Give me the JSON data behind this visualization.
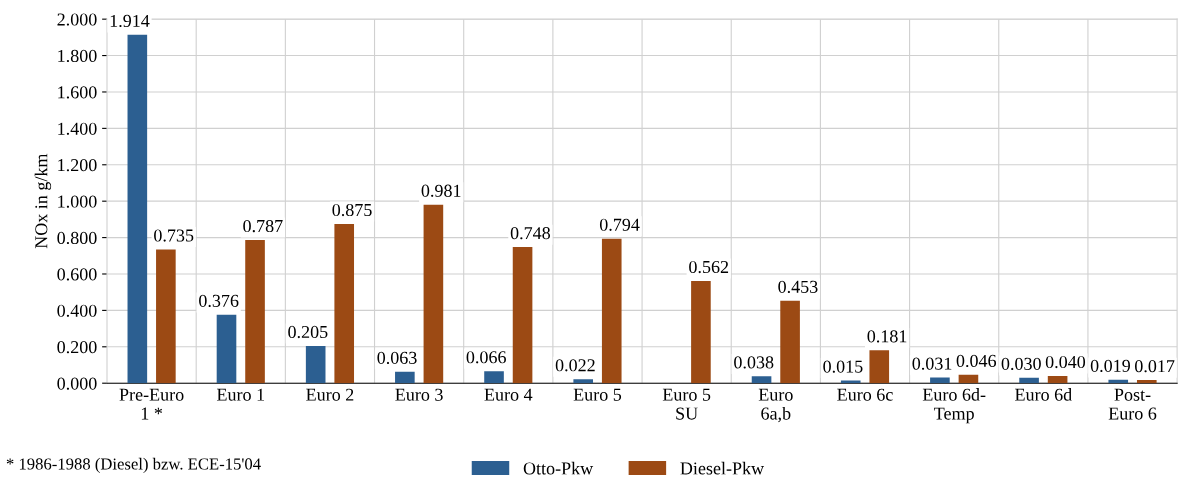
{
  "chart_data": {
    "type": "bar",
    "ylabel": "NOx in g/km",
    "categories": [
      "Pre-Euro\n1 *",
      "Euro 1",
      "Euro 2",
      "Euro 3",
      "Euro 4",
      "Euro 5",
      "Euro 5\nSU",
      "Euro\n6a,b",
      "Euro 6c",
      "Euro 6d-\nTemp",
      "Euro 6d",
      "Post-\nEuro 6"
    ],
    "series": [
      {
        "name": "Otto-Pkw",
        "color": "#2c5f91",
        "values": [
          1.914,
          0.376,
          0.205,
          0.063,
          0.066,
          0.022,
          null,
          0.038,
          0.015,
          0.031,
          0.03,
          0.019
        ],
        "value_labels": [
          "1.914",
          "0.376",
          "0.205",
          "0.063",
          "0.066",
          "0.022",
          null,
          "0.038",
          "0.015",
          "0.031",
          "0.030",
          "0.019"
        ]
      },
      {
        "name": "Diesel-Pkw",
        "color": "#9c4a14",
        "values": [
          0.735,
          0.787,
          0.875,
          0.981,
          0.748,
          0.794,
          0.562,
          0.453,
          0.181,
          0.046,
          0.04,
          0.017
        ],
        "value_labels": [
          "0.735",
          "0.787",
          "0.875",
          "0.981",
          "0.748",
          "0.794",
          "0.562",
          "0.453",
          "0.181",
          "0.046",
          "0.040",
          "0.017"
        ]
      }
    ],
    "ylim": [
      0,
      2.0
    ],
    "yticks": [
      {
        "value": 0,
        "label": "0.000"
      },
      {
        "value": 0.2,
        "label": "0.200"
      },
      {
        "value": 0.4,
        "label": "0.400"
      },
      {
        "value": 0.6,
        "label": "0.600"
      },
      {
        "value": 0.8,
        "label": "0.800"
      },
      {
        "value": 1.0,
        "label": "1.000"
      },
      {
        "value": 1.2,
        "label": "1.200"
      },
      {
        "value": 1.4,
        "label": "1.400"
      },
      {
        "value": 1.6,
        "label": "1.600"
      },
      {
        "value": 1.8,
        "label": "1.800"
      },
      {
        "value": 2.0,
        "label": "2.000"
      }
    ],
    "grid": true,
    "legend": "bottom",
    "annotations": [
      "* 1986-1988 (Diesel) bzw. ECE-15'04"
    ]
  }
}
